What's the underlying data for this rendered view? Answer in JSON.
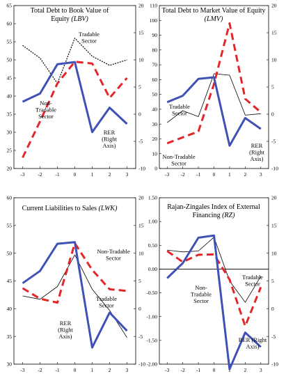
{
  "chart_data": [
    {
      "type": "line",
      "title": "Total Debt to Book Value of",
      "title_line2_prefix": "Equity ",
      "title_line2_italic": "(LBV)",
      "x": [
        -3,
        -2,
        -1,
        0,
        1,
        2,
        3
      ],
      "x_tick_labels": [
        "-3",
        "-2",
        "-1",
        "0",
        "1",
        "2",
        "3"
      ],
      "ylim_left": [
        20,
        65
      ],
      "left_ticks": [
        "20",
        "25",
        "30",
        "35",
        "40",
        "45",
        "50",
        "55",
        "60",
        "65"
      ],
      "ylim_right": [
        -10,
        20
      ],
      "right_ticks": [
        "-10",
        "-5",
        "0",
        "5",
        "10",
        "15",
        "20"
      ],
      "series": [
        {
          "key": "tradable",
          "axis": "left",
          "style": "thin-dotted",
          "values": [
            54,
            50.5,
            43.5,
            56,
            51,
            48.5,
            50
          ]
        },
        {
          "key": "nontradable",
          "axis": "left",
          "style": "red-dashed",
          "values": [
            23,
            33,
            43.5,
            49.5,
            49,
            39.5,
            45
          ]
        },
        {
          "key": "rer",
          "axis": "right",
          "style": "blue-thick",
          "values": [
            2.3,
            3.8,
            9.2,
            9.6,
            -3.3,
            1.2,
            -1.8
          ]
        }
      ],
      "annotations": [
        {
          "series": "tradable",
          "lines": [
            "Tradable",
            "Sector"
          ]
        },
        {
          "series": "nontradable",
          "lines": [
            "Non-",
            "Tradable",
            "Sector"
          ]
        },
        {
          "series": "rer",
          "lines": [
            "RER",
            "(Right",
            "Axis)"
          ]
        }
      ]
    },
    {
      "type": "line",
      "title": "Total Debt to Market Value of Equity",
      "title_line2_prefix": "",
      "title_line2_italic": "(LMV)",
      "x": [
        -3,
        -2,
        -1,
        0,
        1,
        2,
        3
      ],
      "x_tick_labels": [
        "-3",
        "-2",
        "-1",
        "0",
        "1",
        "2",
        "3"
      ],
      "ylim_left": [
        0,
        110
      ],
      "left_ticks": [
        "0",
        "10",
        "20",
        "30",
        "40",
        "50",
        "60",
        "70",
        "80",
        "90",
        "100",
        "110"
      ],
      "ylim_right": [
        -10,
        20
      ],
      "right_ticks": [
        "-10",
        "-5",
        "0",
        "5",
        "10",
        "15",
        "20"
      ],
      "series": [
        {
          "key": "tradable",
          "axis": "left",
          "style": "thin-solid",
          "values": [
            31,
            39,
            35,
            64,
            63,
            36,
            37
          ]
        },
        {
          "key": "nontradable",
          "axis": "left",
          "style": "red-dashed",
          "values": [
            17,
            21,
            25,
            57,
            98,
            47,
            38
          ]
        },
        {
          "key": "rer",
          "axis": "right",
          "style": "blue-thick",
          "values": [
            2.2,
            3.4,
            6.5,
            6.8,
            -5.8,
            -0.7,
            -2.7
          ]
        }
      ],
      "annotations": [
        {
          "series": "tradable",
          "lines": [
            "Tradable",
            "Sector"
          ]
        },
        {
          "series": "nontradable",
          "lines": [
            "Non-Tradable",
            "Sector"
          ]
        },
        {
          "series": "rer",
          "lines": [
            "RER",
            "(Right",
            "Axis)"
          ]
        }
      ]
    },
    {
      "type": "line",
      "title": "Current Liabilities to Sales ",
      "title_line2_prefix": "",
      "title_line2_italic": "",
      "title_inline_italic": "(LWK)",
      "x": [
        -3,
        -2,
        -1,
        0,
        1,
        2,
        3
      ],
      "x_tick_labels": [
        "-3",
        "-2",
        "-1",
        "0",
        "1",
        "2",
        "3"
      ],
      "ylim_left": [
        30,
        60
      ],
      "left_ticks": [
        "30",
        "35",
        "40",
        "45",
        "50",
        "55",
        "60"
      ],
      "ylim_right": [
        -10,
        20
      ],
      "right_ticks": [
        "-10",
        "-5",
        "0",
        "5",
        "10",
        "15",
        "20"
      ],
      "series": [
        {
          "key": "tradable",
          "axis": "left",
          "style": "thin-solid",
          "values": [
            42.3,
            41.7,
            44,
            49.7,
            43.5,
            39.7,
            34.8
          ]
        },
        {
          "key": "nontradable",
          "axis": "left",
          "style": "red-dashed",
          "values": [
            43.7,
            41.8,
            41.1,
            51.8,
            47,
            43.5,
            43.2
          ]
        },
        {
          "key": "rer",
          "axis": "right",
          "style": "blue-thick",
          "values": [
            4.6,
            6.8,
            11.7,
            12,
            -7,
            -0.7,
            -4
          ]
        }
      ],
      "annotations": [
        {
          "series": "nontradable",
          "lines": [
            "Non-Tradable",
            "Sector"
          ]
        },
        {
          "series": "tradable",
          "lines": [
            "Tradable",
            "Sector"
          ]
        },
        {
          "series": "rer",
          "lines": [
            "RER",
            "(Right",
            "Axis)"
          ]
        }
      ]
    },
    {
      "type": "line",
      "title": "Rajan-Zingales Index of External",
      "title_line2_prefix": "Financing ",
      "title_line2_italic": "(RZ)",
      "x": [
        -3,
        -2,
        -1,
        0,
        1,
        2,
        3
      ],
      "x_tick_labels": [
        "-3",
        "-2",
        "-1",
        "0",
        "1",
        "2",
        "3"
      ],
      "ylim_left": [
        -2.0,
        1.5
      ],
      "left_ticks": [
        "-2.00",
        "-1.50",
        "-1.00",
        "-0.50",
        "0.00",
        "0.50",
        "1.00",
        "1.50"
      ],
      "ylim_right": [
        -10,
        20
      ],
      "right_ticks": [
        "-10",
        "-5",
        "0",
        "5",
        "10",
        "15",
        "20"
      ],
      "series": [
        {
          "key": "tradable",
          "axis": "left",
          "style": "thin-solid",
          "values": [
            0.4,
            0.36,
            0.38,
            0.67,
            -0.25,
            -0.7,
            -0.15
          ]
        },
        {
          "key": "nontradable",
          "axis": "left",
          "style": "red-dashed",
          "values": [
            0.38,
            0.15,
            0.3,
            0.31,
            -0.22,
            -1.2,
            -0.38
          ]
        },
        {
          "key": "rer",
          "axis": "right",
          "style": "blue-thick",
          "values": [
            5.5,
            8.2,
            12.8,
            13.2,
            -10.9,
            -4.3,
            -6.9
          ]
        }
      ],
      "annotations": [
        {
          "series": "nontradable",
          "lines": [
            "Non-",
            "Tradable",
            "Sector"
          ]
        },
        {
          "series": "tradable",
          "lines": [
            "Tradable",
            "Sector"
          ]
        },
        {
          "series": "rer",
          "lines": [
            "RER (Right",
            "Axis)"
          ]
        }
      ]
    }
  ],
  "colors": {
    "rer": "#3f51b5",
    "nontradable": "#e3262b",
    "tradable": "#000000",
    "frame": "#000000"
  }
}
